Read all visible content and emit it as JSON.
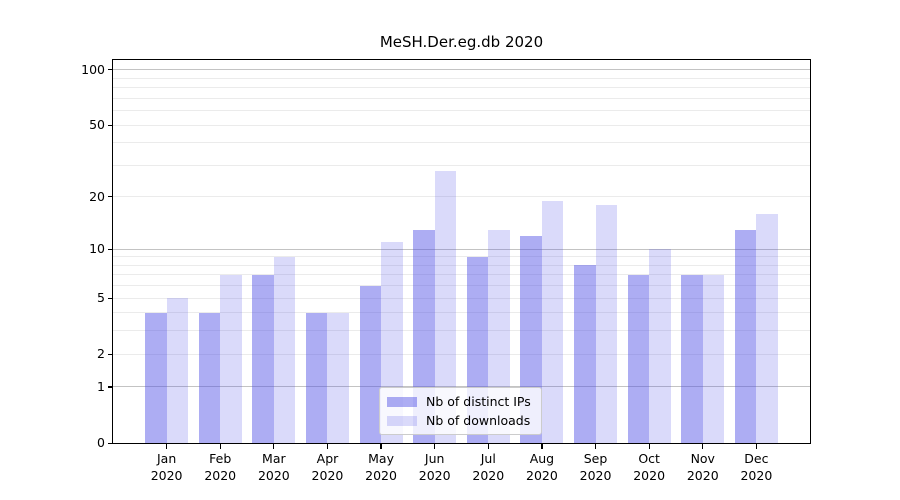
{
  "chart_data": {
    "type": "bar",
    "title": "MeSH.Der.eg.db 2020",
    "categories": [
      "Jan",
      "Feb",
      "Mar",
      "Apr",
      "May",
      "Jun",
      "Jul",
      "Aug",
      "Sep",
      "Oct",
      "Nov",
      "Dec"
    ],
    "year_label": "2020",
    "series": [
      {
        "name": "Nb of distinct IPs",
        "values": [
          4,
          4,
          7,
          4,
          6,
          13,
          9,
          12,
          8,
          7,
          7,
          13
        ],
        "alpha": 0.47
      },
      {
        "name": "Nb of downloads",
        "values": [
          5,
          7,
          9,
          4,
          11,
          28,
          13,
          19,
          18,
          10,
          7,
          16
        ],
        "alpha": 0.21
      }
    ],
    "bar_base_color": "#5050e6",
    "xlabel": "",
    "ylabel": "",
    "y_axis": {
      "scale": "log1p",
      "max": 113,
      "tick_values": [
        0,
        1,
        2,
        5,
        10,
        20,
        50,
        100
      ],
      "tick_labels": [
        "0",
        "1",
        "2",
        "5",
        "10",
        "20",
        "50",
        "100"
      ],
      "major_gridlines": [
        1,
        10,
        100
      ],
      "minor_gridlines": [
        2,
        3,
        4,
        5,
        6,
        7,
        8,
        9,
        20,
        30,
        40,
        50,
        60,
        70,
        80,
        90
      ]
    },
    "grid": {
      "major_color": "#c3c3c3",
      "minor_color": "#ebebeb",
      "enabled": true
    },
    "legend": {
      "position": "lower-center",
      "background": "#ffffff",
      "border_color": "#cccccc"
    }
  }
}
